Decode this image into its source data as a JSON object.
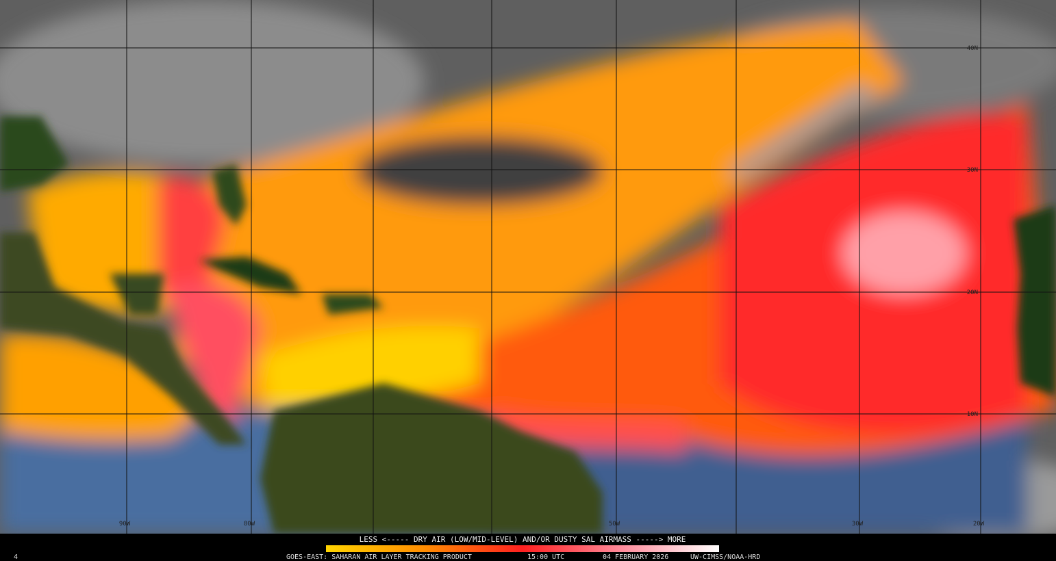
{
  "map": {
    "lat_labels": [
      "40N",
      "30N",
      "20N",
      "10N"
    ],
    "lon_labels": [
      "90W",
      "80W",
      "50W",
      "30W",
      "20W"
    ]
  },
  "legend": {
    "text": "LESS <----- DRY AIR (LOW/MID-LEVEL) AND/OR DUSTY SAL AIRMASS -----> MORE"
  },
  "footer": {
    "frame": "4",
    "product": "GOES-EAST: SAHARAN AIR LAYER TRACKING PRODUCT",
    "time": "15:00 UTC",
    "date": "04 FEBRUARY 2026",
    "credit": "UW-CIMSS/NOAA-HRD"
  }
}
